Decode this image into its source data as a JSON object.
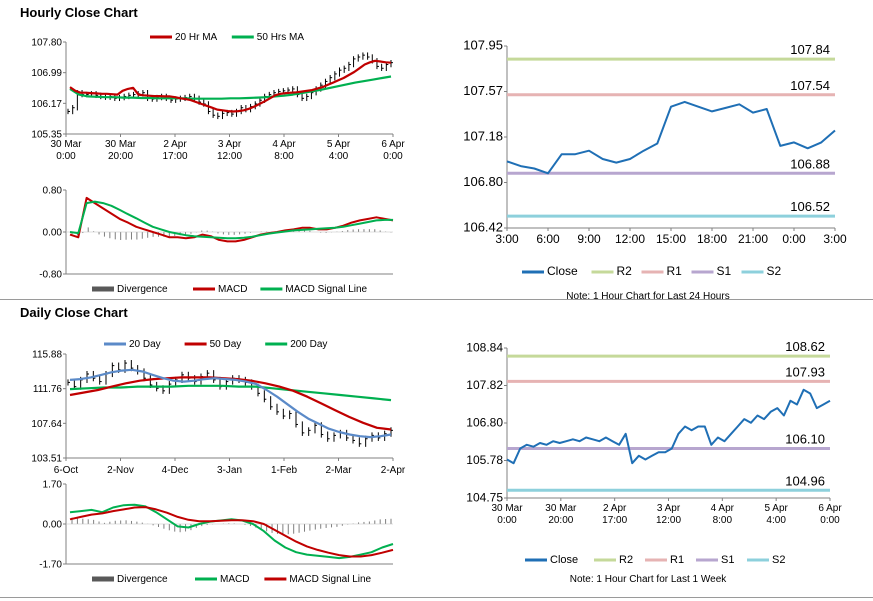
{
  "titles": {
    "hourly": "Hourly Close Chart",
    "daily": "Daily Close Chart"
  },
  "chart_data": [
    {
      "id": "hourly_price",
      "type": "ohlc",
      "legend": [
        "20 Hr MA",
        "50 Hrs MA"
      ],
      "legend_colors": [
        "#c00000",
        "#00b050"
      ],
      "yticks": [
        "107.80",
        "106.99",
        "106.17",
        "105.35"
      ],
      "ylim": [
        105.35,
        107.8
      ],
      "xticks": [
        [
          "30 Mar",
          "0:00"
        ],
        [
          "30 Mar",
          "20:00"
        ],
        [
          "2 Apr",
          "17:00"
        ],
        [
          "3 Apr",
          "12:00"
        ],
        [
          "4 Apr",
          "8:00"
        ],
        [
          "5 Apr",
          "4:00"
        ],
        [
          "6 Apr",
          "0:00"
        ]
      ],
      "close": [
        105.95,
        106.05,
        106.45,
        106.4,
        106.4,
        106.42,
        106.38,
        106.35,
        106.33,
        106.35,
        106.3,
        106.32,
        106.35,
        106.38,
        106.4,
        106.42,
        106.45,
        106.3,
        106.28,
        106.32,
        106.35,
        106.3,
        106.25,
        106.28,
        106.3,
        106.32,
        106.35,
        106.3,
        106.2,
        106.15,
        105.95,
        105.85,
        105.82,
        105.9,
        105.92,
        105.88,
        105.95,
        106.05,
        106.0,
        106.08,
        106.15,
        106.25,
        106.35,
        106.4,
        106.45,
        106.48,
        106.5,
        106.52,
        106.55,
        106.4,
        106.3,
        106.35,
        106.45,
        106.55,
        106.65,
        106.75,
        106.85,
        106.95,
        107.05,
        107.1,
        107.2,
        107.35,
        107.4,
        107.45,
        107.4,
        107.3,
        107.15,
        107.1,
        107.2,
        107.25
      ],
      "ma20": [
        106.6,
        106.5,
        106.45,
        106.45,
        106.44,
        106.43,
        106.42,
        106.42,
        106.41,
        106.4,
        106.5,
        106.55,
        106.58,
        106.4,
        106.38,
        106.37,
        106.36,
        106.36,
        106.35,
        106.35,
        106.33,
        106.3,
        106.28,
        106.25,
        106.2,
        106.15,
        106.1,
        106.05,
        106.0,
        105.98,
        105.96,
        105.95,
        105.96,
        105.98,
        106.02,
        106.08,
        106.15,
        106.22,
        106.3,
        106.38,
        106.42,
        106.44,
        106.45,
        106.46,
        106.48,
        106.5,
        106.52,
        106.56,
        106.6,
        106.66,
        106.72,
        106.78,
        106.84,
        106.92,
        107.0,
        107.1,
        107.2,
        107.26,
        107.3,
        107.28,
        107.26,
        107.25
      ],
      "ma50": [
        106.55,
        106.4,
        106.35,
        106.34,
        106.33,
        106.33,
        106.32,
        106.32,
        106.31,
        106.31,
        106.3,
        106.3,
        106.3,
        106.3,
        106.29,
        106.29,
        106.29,
        106.29,
        106.3,
        106.3,
        106.31,
        106.32,
        106.33,
        106.35,
        106.37,
        106.4,
        106.44,
        106.48,
        106.52,
        106.57,
        106.62,
        106.67,
        106.72,
        106.76,
        106.8,
        106.84,
        106.88
      ]
    },
    {
      "id": "hourly_macd",
      "type": "macd",
      "legend": [
        "Divergence",
        "MACD",
        "MACD Signal Line"
      ],
      "legend_colors": [
        "#595959",
        "#c00000",
        "#00b050"
      ],
      "yticks": [
        "0.80",
        "0.00",
        "-0.80"
      ],
      "ylim": [
        -0.8,
        0.8
      ],
      "macd": [
        -0.05,
        -0.1,
        0.65,
        0.55,
        0.45,
        0.35,
        0.25,
        0.18,
        0.1,
        0.05,
        0.0,
        -0.05,
        -0.1,
        -0.1,
        -0.12,
        -0.1,
        -0.05,
        -0.08,
        -0.15,
        -0.18,
        -0.18,
        -0.15,
        -0.1,
        -0.05,
        -0.02,
        0.0,
        0.03,
        0.05,
        0.08,
        0.08,
        0.05,
        0.05,
        0.08,
        0.12,
        0.18,
        0.22,
        0.25,
        0.28,
        0.25,
        0.22
      ],
      "signal": [
        0.0,
        -0.02,
        0.55,
        0.58,
        0.55,
        0.5,
        0.42,
        0.34,
        0.26,
        0.18,
        0.1,
        0.05,
        0.0,
        -0.03,
        -0.06,
        -0.08,
        -0.09,
        -0.1,
        -0.11,
        -0.12,
        -0.12,
        -0.11,
        -0.09,
        -0.06,
        -0.03,
        -0.01,
        0.01,
        0.03,
        0.04,
        0.05,
        0.06,
        0.07,
        0.08,
        0.1,
        0.13,
        0.16,
        0.19,
        0.22,
        0.23,
        0.23
      ]
    },
    {
      "id": "hourly_levels",
      "type": "line",
      "legend": [
        "Close",
        "R2",
        "R1",
        "S1",
        "S2"
      ],
      "legend_colors": [
        "#1f6fb5",
        "#c5d99a",
        "#e6b3b3",
        "#b7a6cf",
        "#8dd0dc"
      ],
      "yticks": [
        "107.95",
        "107.57",
        "107.18",
        "106.80",
        "106.42"
      ],
      "ylim": [
        106.42,
        107.95
      ],
      "xticks": [
        "3:00",
        "6:00",
        "9:00",
        "12:00",
        "15:00",
        "18:00",
        "21:00",
        "0:00",
        "3:00"
      ],
      "levels": [
        {
          "name": "R2",
          "value": 107.84,
          "label": "107.84",
          "color": "#c5d99a"
        },
        {
          "name": "R1",
          "value": 107.54,
          "label": "107.54",
          "color": "#e6b3b3"
        },
        {
          "name": "S1",
          "value": 106.88,
          "label": "106.88",
          "color": "#b7a6cf"
        },
        {
          "name": "S2",
          "value": 106.52,
          "label": "106.52",
          "color": "#8dd0dc"
        }
      ],
      "close": [
        106.98,
        106.94,
        106.92,
        106.88,
        107.04,
        107.04,
        107.07,
        107.0,
        106.97,
        107.0,
        107.07,
        107.13,
        107.44,
        107.48,
        107.44,
        107.4,
        107.43,
        107.46,
        107.39,
        107.42,
        107.11,
        107.14,
        107.09,
        107.14,
        107.24
      ],
      "note": "Note: 1 Hour Chart for Last 24 Hours"
    },
    {
      "id": "daily_price",
      "type": "ohlc",
      "legend": [
        "20 Day",
        "50 Day",
        "200 Day"
      ],
      "legend_colors": [
        "#5b8ac8",
        "#c00000",
        "#00b050"
      ],
      "yticks": [
        "115.88",
        "111.76",
        "107.64",
        "103.51"
      ],
      "ylim": [
        103.51,
        115.88
      ],
      "xticks": [
        "6-Oct",
        "2-Nov",
        "4-Dec",
        "3-Jan",
        "1-Feb",
        "2-Mar",
        "2-Apr"
      ],
      "close": [
        112.5,
        112.0,
        112.8,
        113.5,
        113.0,
        112.6,
        113.5,
        114.5,
        114.0,
        114.8,
        114.2,
        113.8,
        113.0,
        112.2,
        111.8,
        111.5,
        112.3,
        112.8,
        113.4,
        113.0,
        112.6,
        113.2,
        113.6,
        112.8,
        112.0,
        112.6,
        113.0,
        112.8,
        112.5,
        112.0,
        111.2,
        110.5,
        109.6,
        109.0,
        108.5,
        108.8,
        107.5,
        106.5,
        106.8,
        107.4,
        106.3,
        105.8,
        106.2,
        106.5,
        105.9,
        105.6,
        105.2,
        105.8,
        106.2,
        105.9,
        106.4,
        106.8
      ],
      "ma20": [
        112.8,
        112.9,
        113.1,
        113.4,
        113.7,
        113.9,
        114.0,
        113.8,
        113.4,
        113.0,
        112.7,
        112.6,
        112.7,
        112.9,
        113.0,
        112.9,
        112.8,
        112.6,
        112.3,
        111.6,
        110.8,
        109.9,
        109.0,
        108.2,
        107.6,
        107.0,
        106.6,
        106.3,
        106.1,
        106.0,
        106.1,
        106.3
      ],
      "ma50": [
        111.0,
        111.3,
        111.6,
        112.0,
        112.4,
        112.7,
        112.9,
        113.0,
        113.1,
        113.1,
        113.1,
        113.0,
        112.9,
        112.7,
        112.4,
        112.0,
        111.5,
        110.8,
        110.0,
        109.2,
        108.4,
        107.7,
        107.1,
        106.9
      ],
      "ma200": [
        111.7,
        111.8,
        111.9,
        111.9,
        112.0,
        112.0,
        112.0,
        112.1,
        112.1,
        112.1,
        112.0,
        112.0,
        111.8,
        111.6,
        111.4,
        111.2,
        111.0,
        110.8,
        110.6,
        110.4
      ]
    },
    {
      "id": "daily_macd",
      "type": "macd",
      "legend": [
        "Divergence",
        "MACD",
        "MACD Signal Line"
      ],
      "legend_colors": [
        "#595959",
        "#00b050",
        "#c00000"
      ],
      "yticks": [
        "1.70",
        "0.00",
        "-1.70"
      ],
      "ylim": [
        -1.7,
        1.7
      ],
      "macd": [
        0.5,
        0.55,
        0.6,
        0.5,
        0.7,
        0.8,
        0.82,
        0.75,
        0.5,
        0.2,
        -0.1,
        -0.15,
        0.0,
        0.1,
        0.15,
        0.2,
        0.15,
        0.0,
        -0.3,
        -0.7,
        -1.0,
        -1.2,
        -1.3,
        -1.35,
        -1.4,
        -1.45,
        -1.4,
        -1.3,
        -1.2,
        -1.0,
        -0.85
      ],
      "signal": [
        0.2,
        0.3,
        0.4,
        0.45,
        0.55,
        0.62,
        0.7,
        0.72,
        0.62,
        0.48,
        0.3,
        0.18,
        0.12,
        0.12,
        0.14,
        0.16,
        0.16,
        0.12,
        0.0,
        -0.25,
        -0.5,
        -0.75,
        -0.95,
        -1.1,
        -1.22,
        -1.32,
        -1.38,
        -1.38,
        -1.32,
        -1.22,
        -1.1
      ]
    },
    {
      "id": "daily_levels",
      "type": "line",
      "legend": [
        "Close",
        "R2",
        "R1",
        "S1",
        "S2"
      ],
      "legend_colors": [
        "#1f6fb5",
        "#c5d99a",
        "#e6b3b3",
        "#b7a6cf",
        "#8dd0dc"
      ],
      "yticks": [
        "108.84",
        "107.82",
        "106.80",
        "105.78",
        "104.75"
      ],
      "ylim": [
        104.75,
        108.84
      ],
      "xticks": [
        [
          "30 Mar",
          "0:00"
        ],
        [
          "30 Mar",
          "20:00"
        ],
        [
          "2 Apr",
          "17:00"
        ],
        [
          "3 Apr",
          "12:00"
        ],
        [
          "4 Apr",
          "8:00"
        ],
        [
          "5 Apr",
          "4:00"
        ],
        [
          "6 Apr",
          "0:00"
        ]
      ],
      "levels": [
        {
          "name": "R2",
          "value": 108.62,
          "label": "108.62",
          "color": "#c5d99a"
        },
        {
          "name": "R1",
          "value": 107.93,
          "label": "107.93",
          "color": "#e6b3b3"
        },
        {
          "name": "S1",
          "value": 106.1,
          "label": "106.10",
          "color": "#b7a6cf"
        },
        {
          "name": "S2",
          "value": 104.96,
          "label": "104.96",
          "color": "#8dd0dc"
        }
      ],
      "close": [
        105.8,
        105.7,
        106.1,
        106.2,
        106.15,
        106.25,
        106.2,
        106.3,
        106.25,
        106.3,
        106.35,
        106.3,
        106.4,
        106.35,
        106.3,
        106.4,
        106.3,
        106.2,
        106.5,
        105.7,
        105.9,
        105.8,
        105.9,
        106.0,
        106.0,
        106.1,
        106.5,
        106.7,
        106.6,
        106.7,
        106.7,
        106.2,
        106.4,
        106.3,
        106.5,
        106.7,
        106.9,
        106.8,
        107.0,
        106.9,
        107.1,
        107.2,
        107.0,
        107.4,
        107.3,
        107.7,
        107.6,
        107.2,
        107.3,
        107.4
      ],
      "note": "Note: 1 Hour Chart for Last 1 Week"
    }
  ]
}
